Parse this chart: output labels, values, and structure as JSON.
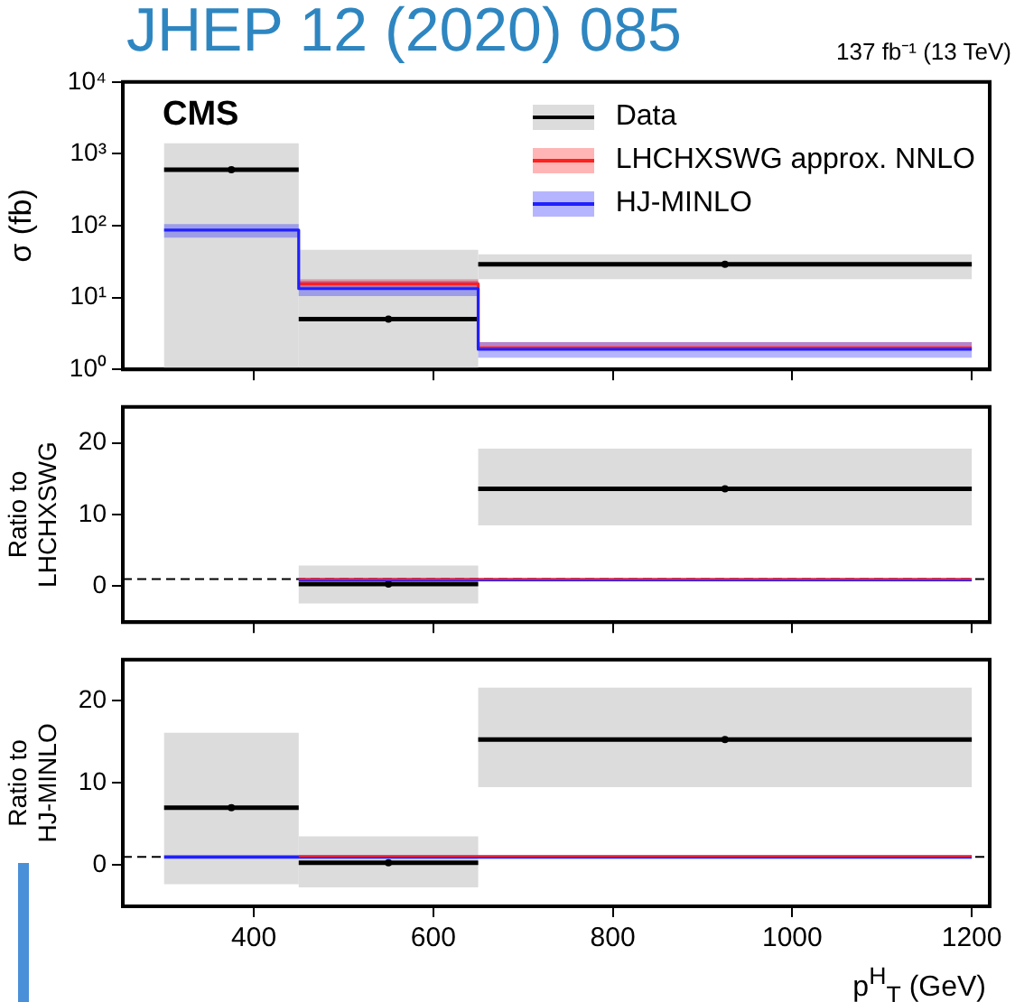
{
  "chart_data": [
    {
      "type": "line",
      "title": "JHEP 12 (2020) 085",
      "ylabel": "σ (fb)",
      "annotations": [
        "CMS",
        "137 fb⁻¹ (13 TeV)"
      ],
      "log": true,
      "xlim": [
        254,
        1220
      ],
      "xticks": [
        400,
        600,
        800,
        1000,
        1200
      ],
      "ylim": [
        1,
        10000
      ],
      "yticks": [
        {
          "value": 1,
          "label": "10⁰"
        },
        {
          "value": 10,
          "label": "10¹"
        },
        {
          "value": 100,
          "label": "10²"
        },
        {
          "value": 1000,
          "label": "10³"
        },
        {
          "value": 10000,
          "label": "10⁴"
        }
      ],
      "tick_labels": "y",
      "legend": "top right",
      "series": [
        {
          "name": "Data",
          "type": "scatter",
          "color": "#000000",
          "x": [
            375,
            550,
            925
          ],
          "values": [
            600,
            5,
            29
          ],
          "xerrors": [
            75,
            100,
            275
          ],
          "errors": [
            [
              1,
              1400
            ],
            [
              1,
              46
            ],
            [
              18,
              40
            ]
          ]
        },
        {
          "name": "LHCHXSWG approx. NNLO",
          "color": "#ff2020",
          "x": [
            450,
            650,
            650,
            1200
          ],
          "values": [
            15.5,
            15.5,
            2.0,
            2.0
          ],
          "lower": [
            13.5,
            13.5,
            1.9,
            1.9
          ],
          "upper": [
            18,
            18,
            2.4,
            2.4
          ]
        },
        {
          "name": "HJ-MINLO",
          "color": "#2020ff",
          "x": [
            300,
            450,
            450,
            650,
            650,
            1200
          ],
          "values": [
            87,
            87,
            13.3,
            13.3,
            1.9,
            1.9
          ],
          "lower": [
            68,
            68,
            10.5,
            10.5,
            1.45,
            1.45
          ],
          "upper": [
            105,
            105,
            17,
            17,
            2.4,
            2.4
          ]
        }
      ]
    },
    {
      "type": "line",
      "ylabel": "Ratio to LHCHXSWG",
      "xlim": [
        254,
        1220
      ],
      "xticks": [
        400,
        600,
        800,
        1000,
        1200
      ],
      "ylim": [
        -5,
        25
      ],
      "yticks": [
        0,
        10,
        20
      ],
      "tick_labels": "y",
      "ref_lines": [
        {
          "axis": "y",
          "value": 1,
          "line_style": "dashed",
          "color": "#000000"
        }
      ],
      "series": [
        {
          "type": "scatter",
          "color": "#000000",
          "x": [
            550,
            925
          ],
          "values": [
            0.3,
            13.6
          ],
          "xerrors": [
            100,
            275
          ],
          "errors": [
            [
              -2.4,
              2.9
            ],
            [
              8.5,
              19.2
            ]
          ]
        },
        {
          "color": "#2020ff",
          "x": [
            450,
            1200
          ],
          "values": [
            0.9,
            0.9
          ]
        },
        {
          "color": "#ff2020",
          "x": [
            450,
            1200
          ],
          "values": [
            1,
            1
          ]
        }
      ]
    },
    {
      "type": "line",
      "ylabel": "Ratio to HJ-MINLO",
      "xlabel": "p$^{H}$$_{T}$ (GeV)",
      "xlim": [
        254,
        1220
      ],
      "xticks": [
        400,
        600,
        800,
        1000,
        1200
      ],
      "ylim": [
        -5,
        25
      ],
      "yticks": [
        0,
        10,
        20
      ],
      "ref_lines": [
        {
          "axis": "y",
          "value": 1,
          "line_style": "dashed",
          "color": "#000000"
        }
      ],
      "series": [
        {
          "type": "scatter",
          "color": "#000000",
          "x": [
            375,
            550,
            925
          ],
          "values": [
            7.0,
            0.3,
            15.3
          ],
          "xerrors": [
            75,
            100,
            275
          ],
          "errors": [
            [
              -2.3,
              16.1
            ],
            [
              -2.7,
              3.5
            ],
            [
              9.5,
              21.6
            ]
          ]
        },
        {
          "color": "#2020ff",
          "x": [
            300,
            1200
          ],
          "values": [
            1,
            1
          ]
        },
        {
          "color": "#ff2020",
          "x": [
            450,
            1200
          ],
          "values": [
            1.1,
            1.1
          ]
        }
      ]
    }
  ]
}
